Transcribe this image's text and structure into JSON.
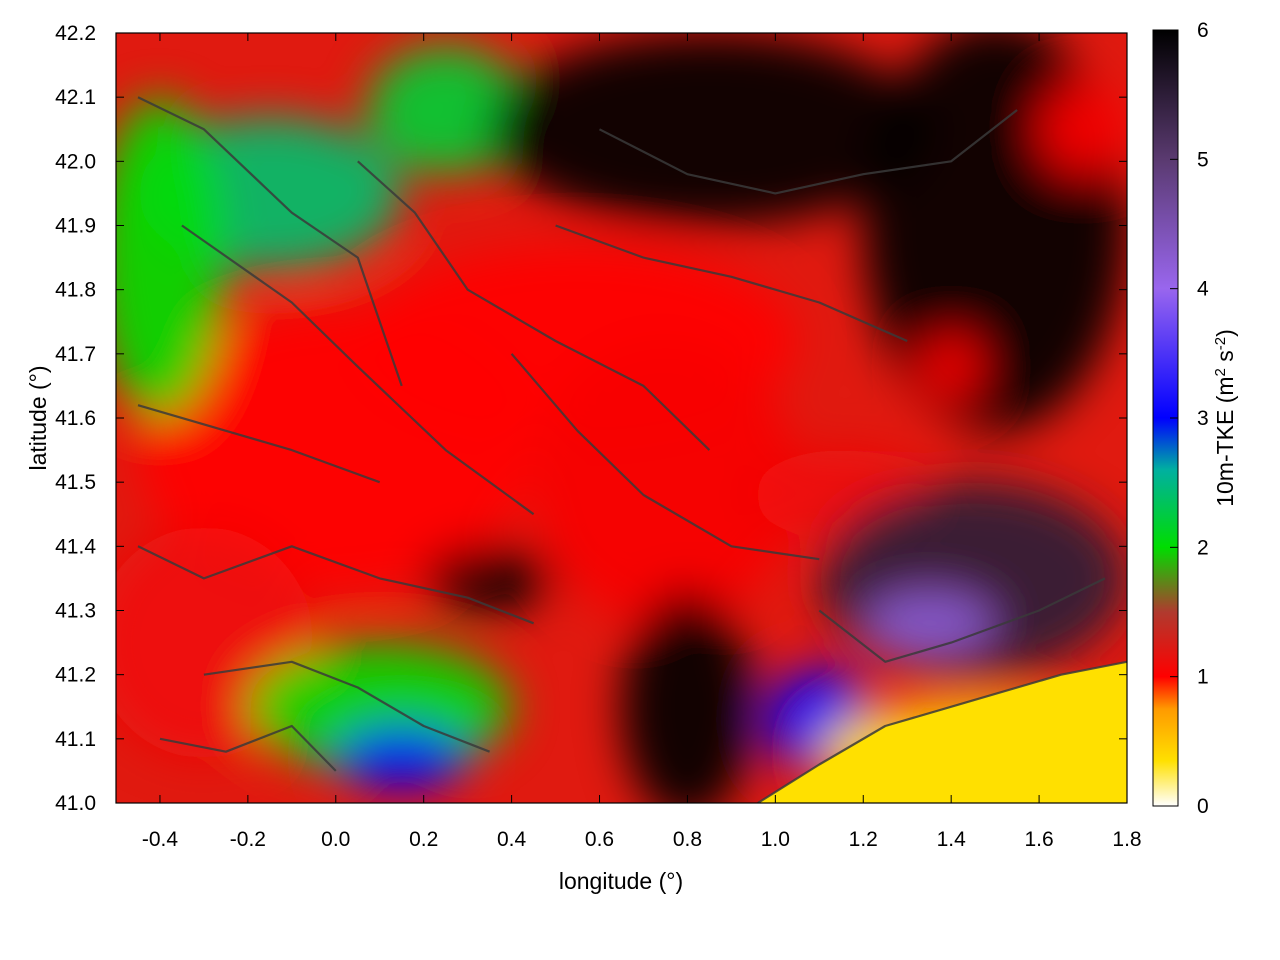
{
  "chart_data": {
    "type": "heatmap",
    "xlabel": "longitude (°)",
    "ylabel": "latitude (°)",
    "colorbar_label": {
      "prefix": "10m-TKE (m",
      "sup1": "2",
      "mid": " s",
      "sup2": "-2",
      "suffix": ")"
    },
    "xlim": [
      -0.5,
      1.8
    ],
    "ylim": [
      41.0,
      42.2
    ],
    "zlim": [
      0,
      6
    ],
    "x_ticks": [
      "-0.4",
      "-0.2",
      "0.0",
      "0.2",
      "0.4",
      "0.6",
      "0.8",
      "1.0",
      "1.2",
      "1.4",
      "1.6",
      "1.8"
    ],
    "x_tick_values": [
      -0.4,
      -0.2,
      0.0,
      0.2,
      0.4,
      0.6,
      0.8,
      1.0,
      1.2,
      1.4,
      1.6,
      1.8
    ],
    "y_ticks": [
      "41.0",
      "41.1",
      "41.2",
      "41.3",
      "41.4",
      "41.5",
      "41.6",
      "41.7",
      "41.8",
      "41.9",
      "42.0",
      "42.1",
      "42.2"
    ],
    "y_tick_values": [
      41.0,
      41.1,
      41.2,
      41.3,
      41.4,
      41.5,
      41.6,
      41.7,
      41.8,
      41.9,
      42.0,
      42.1,
      42.2
    ],
    "colorbar_ticks": [
      "0",
      "1",
      "2",
      "3",
      "4",
      "5",
      "6"
    ],
    "colorbar_tick_values": [
      0,
      1,
      2,
      3,
      4,
      5,
      6
    ],
    "colormap": [
      {
        "v": 0.0,
        "color": "#ffffff"
      },
      {
        "v": 0.35,
        "color": "#ffe000"
      },
      {
        "v": 0.75,
        "color": "#ff9a00"
      },
      {
        "v": 1.0,
        "color": "#ff0000"
      },
      {
        "v": 1.5,
        "color": "#b03a2e"
      },
      {
        "v": 2.0,
        "color": "#00dd00"
      },
      {
        "v": 2.6,
        "color": "#00b0a0"
      },
      {
        "v": 3.0,
        "color": "#0000ff"
      },
      {
        "v": 4.0,
        "color": "#9966ee"
      },
      {
        "v": 5.0,
        "color": "#5a3a70"
      },
      {
        "v": 6.0,
        "color": "#000000"
      }
    ],
    "field_regions": [
      {
        "lon": 0.0,
        "lat": 41.55,
        "rx": 0.45,
        "ry": 0.22,
        "value": 1.0
      },
      {
        "lon": 0.55,
        "lat": 41.72,
        "rx": 0.5,
        "ry": 0.15,
        "value": 1.0
      },
      {
        "lon": 0.75,
        "lat": 41.5,
        "rx": 0.3,
        "ry": 0.22,
        "value": 1.05
      },
      {
        "lon": -0.3,
        "lat": 41.25,
        "rx": 0.25,
        "ry": 0.18,
        "value": 1.1
      },
      {
        "lon": 1.15,
        "lat": 41.48,
        "rx": 0.2,
        "ry": 0.07,
        "value": 1.1
      },
      {
        "lon": -0.15,
        "lat": 41.95,
        "rx": 0.3,
        "ry": 0.12,
        "value": 2.4
      },
      {
        "lon": -0.4,
        "lat": 41.85,
        "rx": 0.15,
        "ry": 0.25,
        "value": 2.0
      },
      {
        "lon": 0.25,
        "lat": 42.08,
        "rx": 0.18,
        "ry": 0.1,
        "value": 2.2
      },
      {
        "lon": 0.1,
        "lat": 41.15,
        "rx": 0.3,
        "ry": 0.1,
        "value": 2.0
      },
      {
        "lon": 0.15,
        "lat": 41.07,
        "rx": 0.15,
        "ry": 0.05,
        "value": 3.0
      },
      {
        "lon": 0.85,
        "lat": 42.05,
        "rx": 0.5,
        "ry": 0.15,
        "value": 6.0
      },
      {
        "lon": 1.5,
        "lat": 41.9,
        "rx": 0.3,
        "ry": 0.32,
        "value": 6.0
      },
      {
        "lon": 1.45,
        "lat": 41.35,
        "rx": 0.35,
        "ry": 0.15,
        "value": 5.5
      },
      {
        "lon": 0.8,
        "lat": 41.15,
        "rx": 0.15,
        "ry": 0.18,
        "value": 6.0
      },
      {
        "lon": 0.35,
        "lat": 41.35,
        "rx": 0.15,
        "ry": 0.05,
        "value": 6.0
      },
      {
        "lon": 1.1,
        "lat": 41.13,
        "rx": 0.12,
        "ry": 0.08,
        "value": 3.0
      },
      {
        "lon": 1.35,
        "lat": 41.28,
        "rx": 0.15,
        "ry": 0.05,
        "value": 4.2
      },
      {
        "lon": 1.7,
        "lat": 42.05,
        "rx": 0.1,
        "ry": 0.07,
        "value": 1.0
      },
      {
        "lon": 1.4,
        "lat": 41.68,
        "rx": 0.07,
        "ry": 0.05,
        "value": 1.0
      },
      {
        "lon": 1.45,
        "lat": 41.08,
        "rx": 0.35,
        "ry": 0.08,
        "value": 0.35
      }
    ],
    "sea_region": {
      "value": 0.35,
      "boundary": [
        [
          0.96,
          41.0
        ],
        [
          1.1,
          41.06
        ],
        [
          1.25,
          41.12
        ],
        [
          1.45,
          41.16
        ],
        [
          1.65,
          41.2
        ],
        [
          1.8,
          41.22
        ],
        [
          1.8,
          41.0
        ]
      ]
    },
    "contours": [
      [
        [
          -0.45,
          42.1
        ],
        [
          -0.3,
          42.05
        ],
        [
          -0.1,
          41.92
        ],
        [
          0.05,
          41.85
        ],
        [
          0.15,
          41.65
        ]
      ],
      [
        [
          -0.35,
          41.9
        ],
        [
          -0.1,
          41.78
        ],
        [
          0.05,
          41.68
        ],
        [
          0.25,
          41.55
        ],
        [
          0.45,
          41.45
        ]
      ],
      [
        [
          0.05,
          42.0
        ],
        [
          0.18,
          41.92
        ],
        [
          0.3,
          41.8
        ],
        [
          0.5,
          41.72
        ],
        [
          0.7,
          41.65
        ],
        [
          0.85,
          41.55
        ]
      ],
      [
        [
          0.4,
          41.7
        ],
        [
          0.55,
          41.58
        ],
        [
          0.7,
          41.48
        ],
        [
          0.9,
          41.4
        ],
        [
          1.1,
          41.38
        ]
      ],
      [
        [
          -0.45,
          41.4
        ],
        [
          -0.3,
          41.35
        ],
        [
          -0.1,
          41.4
        ],
        [
          0.1,
          41.35
        ],
        [
          0.3,
          41.32
        ],
        [
          0.45,
          41.28
        ]
      ],
      [
        [
          -0.3,
          41.2
        ],
        [
          -0.1,
          41.22
        ],
        [
          0.05,
          41.18
        ],
        [
          0.2,
          41.12
        ],
        [
          0.35,
          41.08
        ]
      ],
      [
        [
          0.5,
          41.9
        ],
        [
          0.7,
          41.85
        ],
        [
          0.9,
          41.82
        ],
        [
          1.1,
          41.78
        ],
        [
          1.3,
          41.72
        ]
      ],
      [
        [
          0.6,
          42.05
        ],
        [
          0.8,
          41.98
        ],
        [
          1.0,
          41.95
        ],
        [
          1.2,
          41.98
        ],
        [
          1.4,
          42.0
        ],
        [
          1.55,
          42.08
        ]
      ],
      [
        [
          1.1,
          41.3
        ],
        [
          1.25,
          41.22
        ],
        [
          1.4,
          41.25
        ],
        [
          1.6,
          41.3
        ],
        [
          1.75,
          41.35
        ]
      ],
      [
        [
          -0.45,
          41.62
        ],
        [
          -0.25,
          41.58
        ],
        [
          -0.1,
          41.55
        ],
        [
          0.1,
          41.5
        ]
      ],
      [
        [
          -0.4,
          41.1
        ],
        [
          -0.25,
          41.08
        ],
        [
          -0.1,
          41.12
        ],
        [
          0.0,
          41.05
        ]
      ],
      [
        [
          0.96,
          41.0
        ],
        [
          1.1,
          41.06
        ],
        [
          1.25,
          41.12
        ],
        [
          1.45,
          41.16
        ],
        [
          1.65,
          41.2
        ],
        [
          1.8,
          41.22
        ]
      ]
    ]
  }
}
